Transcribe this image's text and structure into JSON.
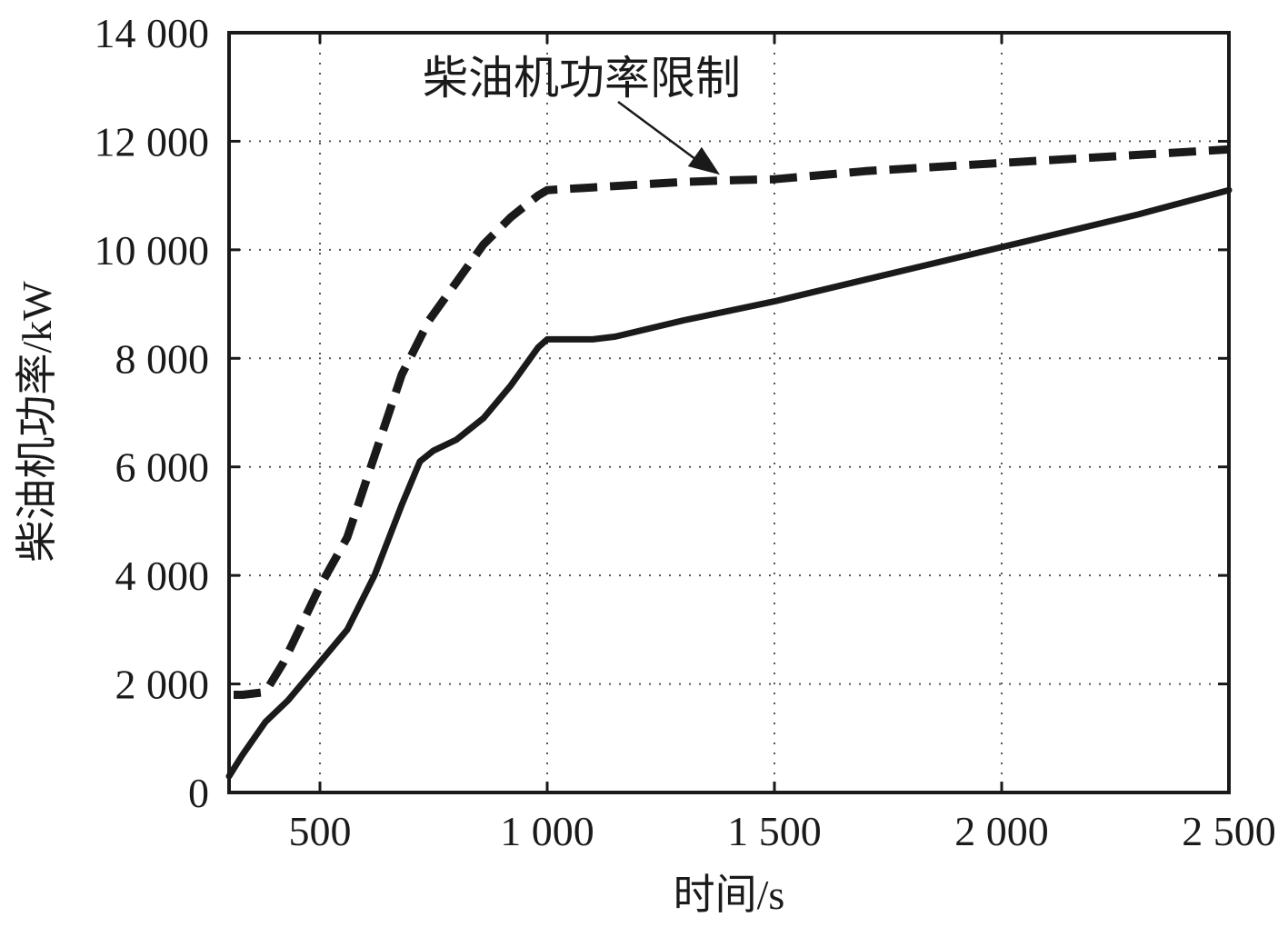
{
  "chart_data": {
    "type": "line",
    "title": "",
    "xlabel": "时间/s",
    "ylabel": "柴油机功率/kW",
    "xlim": [
      300,
      2500
    ],
    "ylim": [
      0,
      14000
    ],
    "x_ticks": [
      500,
      1000,
      1500,
      2000,
      2500
    ],
    "x_tick_labels": [
      "500",
      "1 000",
      "1 500",
      "2 000",
      "2 500"
    ],
    "y_ticks": [
      0,
      2000,
      4000,
      6000,
      8000,
      10000,
      12000,
      14000
    ],
    "y_tick_labels": [
      "0",
      "2 000",
      "4 000",
      "6 000",
      "8 000",
      "10 000",
      "12 000",
      "14 000"
    ],
    "grid": true,
    "series": [
      {
        "style": "dashed",
        "x": [
          310,
          330,
          380,
          420,
          500,
          560,
          620,
          680,
          740,
          800,
          860,
          920,
          980,
          1000,
          1100,
          1200,
          1300,
          1400,
          1500,
          1700,
          2000,
          2300,
          2500
        ],
        "y": [
          1800,
          1800,
          1850,
          2400,
          3800,
          4700,
          6200,
          7700,
          8700,
          9400,
          10100,
          10600,
          11000,
          11100,
          11150,
          11200,
          11250,
          11280,
          11300,
          11450,
          11600,
          11750,
          11850
        ]
      },
      {
        "style": "solid",
        "x": [
          300,
          330,
          380,
          430,
          500,
          560,
          620,
          680,
          720,
          750,
          800,
          860,
          920,
          980,
          1000,
          1050,
          1100,
          1150,
          1300,
          1500,
          1700,
          2000,
          2300,
          2500
        ],
        "y": [
          300,
          700,
          1300,
          1700,
          2400,
          3000,
          4000,
          5300,
          6100,
          6300,
          6500,
          6900,
          7500,
          8200,
          8350,
          8350,
          8350,
          8400,
          8700,
          9050,
          9450,
          10050,
          10650,
          11100
        ]
      }
    ],
    "annotations": [
      {
        "text": "柴油机功率限制",
        "arrow_to": {
          "x": 1440,
          "y": 11250
        }
      }
    ]
  }
}
